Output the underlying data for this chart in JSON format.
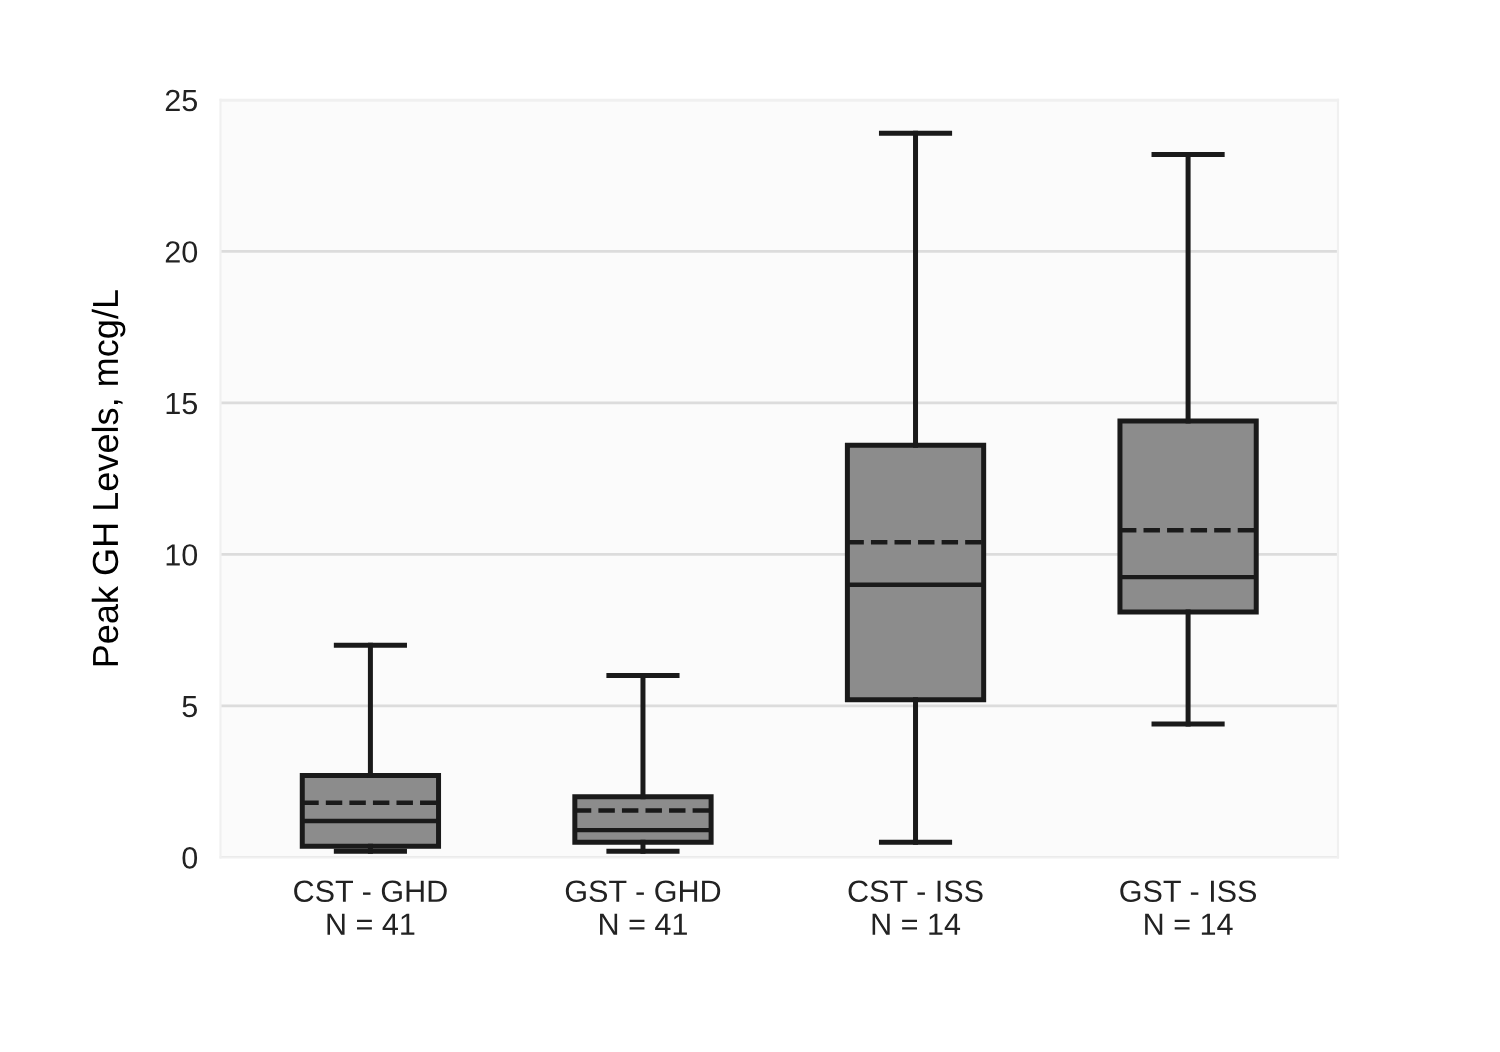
{
  "chart_data": {
    "type": "box",
    "ylabel": "Peak GH Levels, mcg/L",
    "categories": [
      "CST - GHD\nN = 41",
      "GST - GHD\nN = 41",
      "CST - ISS\nN = 14",
      "GST - ISS\nN = 14"
    ],
    "boxes": [
      {
        "low": 0.2,
        "q1": 0.37,
        "median": 1.2,
        "q3": 2.7,
        "high": 7.0,
        "mean": 1.8
      },
      {
        "low": 0.2,
        "q1": 0.5,
        "median": 0.9,
        "q3": 2.0,
        "high": 6.0,
        "mean": 1.55
      },
      {
        "low": 0.5,
        "q1": 5.2,
        "median": 9.0,
        "q3": 13.6,
        "high": 23.9,
        "mean": 10.4
      },
      {
        "low": 4.4,
        "q1": 8.1,
        "median": 9.25,
        "q3": 14.4,
        "high": 23.2,
        "mean": 10.8
      }
    ],
    "color": "#8c8c8c",
    "ylim": [
      0,
      25
    ],
    "yticks": [
      0,
      5,
      10,
      15,
      20,
      25
    ],
    "grid": "y"
  }
}
